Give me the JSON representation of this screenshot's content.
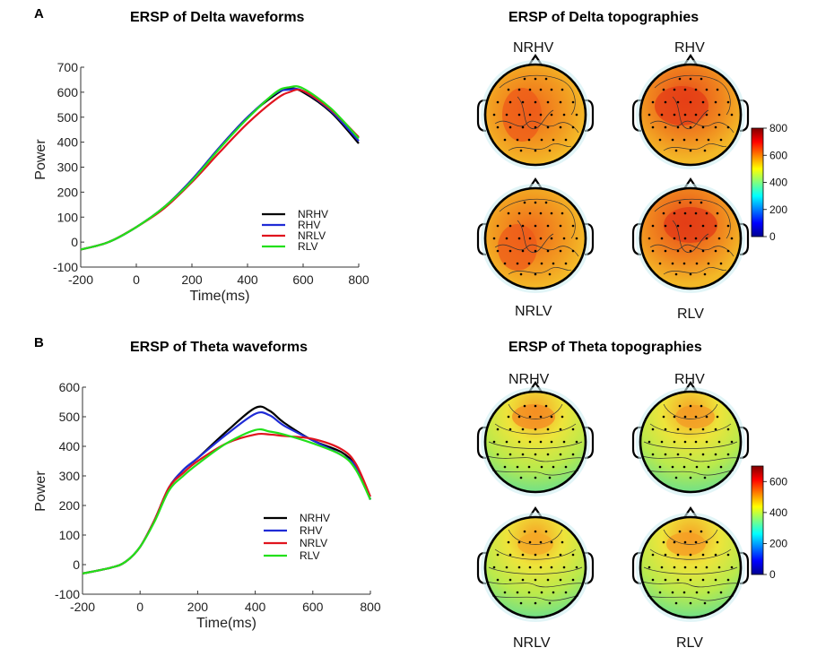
{
  "panels": {
    "a": {
      "letter": "A"
    },
    "b": {
      "letter": "B"
    }
  },
  "chart_data": [
    {
      "type": "line",
      "title": "ERSP of Delta waveforms",
      "xlabel": "Time(ms)",
      "ylabel": "Power",
      "xlim": [
        -200,
        800
      ],
      "ylim": [
        -100,
        700
      ],
      "x_ticks": [
        -200,
        0,
        200,
        400,
        600,
        800
      ],
      "y_ticks": [
        -100,
        0,
        100,
        200,
        300,
        400,
        500,
        600,
        700
      ],
      "series": [
        {
          "name": "NRHV",
          "color": "#000000",
          "x": [
            -200,
            -100,
            0,
            100,
            200,
            300,
            400,
            500,
            550,
            600,
            700,
            800
          ],
          "y": [
            -30,
            0,
            60,
            140,
            250,
            380,
            500,
            590,
            615,
            600,
            520,
            395
          ]
        },
        {
          "name": "RHV",
          "color": "#1f2bd6",
          "x": [
            -200,
            -100,
            0,
            100,
            200,
            300,
            400,
            500,
            550,
            600,
            700,
            800
          ],
          "y": [
            -30,
            0,
            60,
            140,
            250,
            380,
            500,
            595,
            610,
            605,
            525,
            405
          ]
        },
        {
          "name": "NRLV",
          "color": "#e0141e",
          "x": [
            -200,
            -100,
            0,
            100,
            200,
            300,
            400,
            500,
            550,
            600,
            700,
            800
          ],
          "y": [
            -30,
            0,
            60,
            135,
            240,
            360,
            475,
            570,
            600,
            605,
            530,
            420
          ]
        },
        {
          "name": "RLV",
          "color": "#22e01a",
          "x": [
            -200,
            -100,
            0,
            100,
            200,
            300,
            400,
            500,
            550,
            600,
            700,
            800
          ],
          "y": [
            -30,
            0,
            60,
            140,
            245,
            375,
            495,
            598,
            620,
            615,
            535,
            415
          ]
        }
      ],
      "legend": "center-right"
    },
    {
      "type": "line",
      "title": "ERSP of Theta waveforms",
      "xlabel": "Time(ms)",
      "ylabel": "Power",
      "xlim": [
        -200,
        800
      ],
      "ylim": [
        -100,
        600
      ],
      "x_ticks": [
        -200,
        0,
        200,
        400,
        600,
        800
      ],
      "y_ticks": [
        -100,
        0,
        100,
        200,
        300,
        400,
        500,
        600
      ],
      "series": [
        {
          "name": "NRHV",
          "color": "#000000",
          "x": [
            -200,
            -100,
            -50,
            0,
            50,
            100,
            150,
            200,
            300,
            400,
            450,
            500,
            600,
            700,
            750,
            800
          ],
          "y": [
            -30,
            -10,
            10,
            60,
            150,
            260,
            320,
            360,
            450,
            530,
            520,
            480,
            420,
            380,
            330,
            220
          ]
        },
        {
          "name": "RHV",
          "color": "#1f2bd6",
          "x": [
            -200,
            -100,
            -50,
            0,
            50,
            100,
            150,
            200,
            300,
            400,
            450,
            500,
            600,
            700,
            750,
            800
          ],
          "y": [
            -30,
            -10,
            10,
            60,
            150,
            260,
            320,
            360,
            440,
            510,
            505,
            470,
            420,
            370,
            330,
            220
          ]
        },
        {
          "name": "NRLV",
          "color": "#e0141e",
          "x": [
            -200,
            -100,
            -50,
            0,
            50,
            100,
            150,
            200,
            300,
            400,
            450,
            500,
            600,
            700,
            750,
            800
          ],
          "y": [
            -30,
            -10,
            10,
            60,
            150,
            260,
            310,
            350,
            410,
            440,
            440,
            435,
            425,
            390,
            340,
            230
          ]
        },
        {
          "name": "RLV",
          "color": "#22e01a",
          "x": [
            -200,
            -100,
            -50,
            0,
            50,
            100,
            150,
            200,
            300,
            400,
            450,
            500,
            600,
            700,
            750,
            800
          ],
          "y": [
            -30,
            -10,
            10,
            60,
            145,
            250,
            300,
            340,
            410,
            455,
            450,
            440,
            410,
            370,
            320,
            220
          ]
        }
      ],
      "legend": "center-right"
    },
    {
      "type": "heatmap",
      "title": "ERSP of Delta topographies",
      "maps": [
        "NRHV",
        "RHV",
        "NRLV",
        "RLV"
      ],
      "colorbar": {
        "min": 0,
        "max": 800,
        "ticks": [
          0,
          200,
          400,
          600,
          800
        ]
      }
    },
    {
      "type": "heatmap",
      "title": "ERSP of Theta topographies",
      "maps": [
        "NRHV",
        "RHV",
        "NRLV",
        "RLV"
      ],
      "colorbar": {
        "min": 0,
        "max": 700,
        "ticks": [
          0,
          200,
          400,
          600
        ]
      }
    }
  ]
}
